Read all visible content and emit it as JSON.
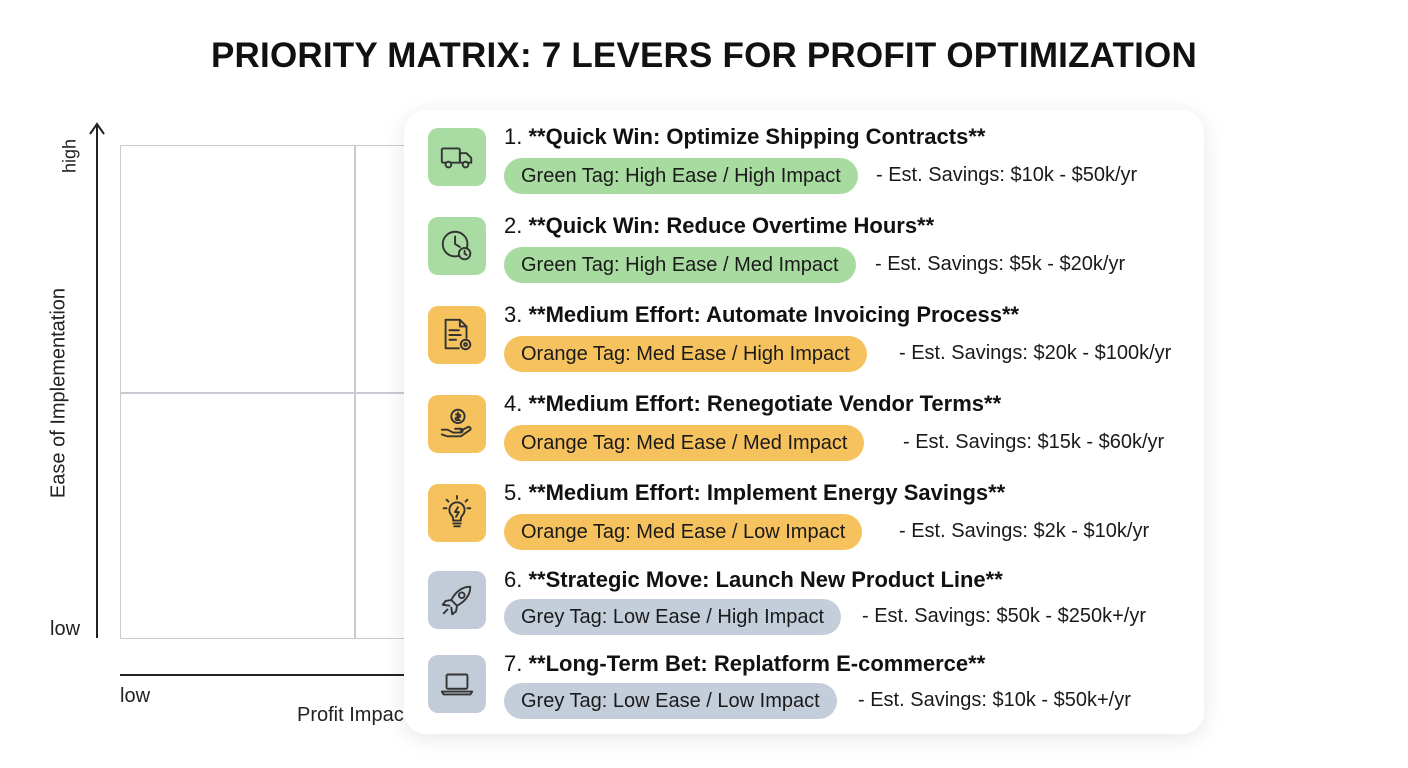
{
  "title": "PRIORITY MATRIX: 7 LEVERS FOR PROFIT OPTIMIZATION",
  "matrix": {
    "y_axis_label": "Ease of Implementation",
    "y_high": "high",
    "y_low": "low",
    "x_low": "low",
    "x_axis_label": "Profit Impact"
  },
  "colors": {
    "green_tag": "#a8dba0",
    "green_icon": "#a9dca3",
    "orange_tag": "#f6c25e",
    "orange_icon": "#f5c25d",
    "grey_tag": "#c4cedb",
    "grey_icon": "#c2ccd8"
  },
  "levers": [
    {
      "number": "1.",
      "title": "**Quick Win: Optimize Shipping Contracts**",
      "tag": "Green Tag: High Ease / High Impact",
      "savings": "- Est. Savings: $10k - $50k/yr",
      "color": "green",
      "icon": "truck-icon"
    },
    {
      "number": "2.",
      "title": "**Quick Win: Reduce Overtime Hours**",
      "tag": "Green Tag: High Ease / Med Impact",
      "savings": "- Est. Savings: $5k - $20k/yr",
      "color": "green",
      "icon": "clock-icon"
    },
    {
      "number": "3.",
      "title": "**Medium Effort: Automate Invoicing Process**",
      "tag": "Orange Tag: Med Ease / High Impact",
      "savings": "- Est. Savings: $20k - $100k/yr",
      "color": "orange",
      "icon": "invoice-gear-icon"
    },
    {
      "number": "4.",
      "title": "**Medium Effort: Renegotiate Vendor Terms**",
      "tag": "Orange Tag: Med Ease / Med Impact",
      "savings": "- Est. Savings: $15k - $60k/yr",
      "color": "orange",
      "icon": "hand-coin-icon"
    },
    {
      "number": "5.",
      "title": "**Medium Effort: Implement Energy Savings**",
      "tag": "Orange Tag: Med Ease / Low Impact",
      "savings": "- Est. Savings: $2k - $10k/yr",
      "color": "orange",
      "icon": "lightbulb-icon"
    },
    {
      "number": "6.",
      "title": "**Strategic Move: Launch New Product Line**",
      "tag": "Grey Tag: Low Ease / High Impact",
      "savings": "- Est. Savings: $50k - $250k+/yr",
      "color": "grey",
      "icon": "rocket-icon"
    },
    {
      "number": "7.",
      "title": "**Long-Term Bet: Replatform E-commerce**",
      "tag": "Grey Tag: Low Ease / Low Impact",
      "savings": "- Est. Savings: $10k - $50k+/yr",
      "color": "grey",
      "icon": "laptop-icon"
    }
  ]
}
